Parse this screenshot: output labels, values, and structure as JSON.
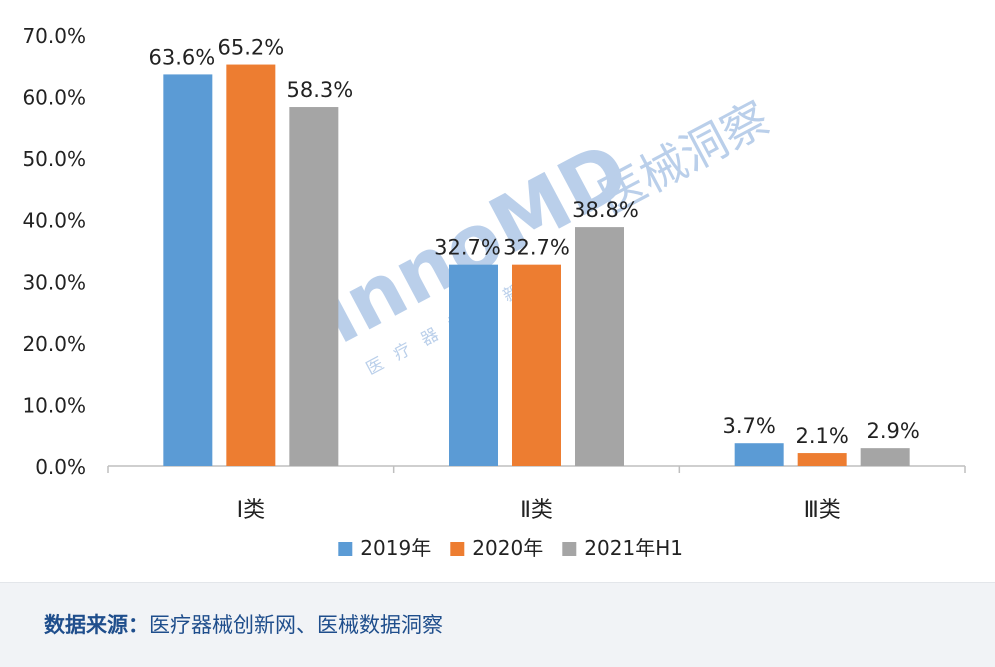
{
  "chart_data": {
    "type": "bar",
    "categories": [
      "Ⅰ类",
      "Ⅱ类",
      "Ⅲ类"
    ],
    "series": [
      {
        "name": "2019年",
        "color": "#5b9bd5",
        "values": [
          63.6,
          32.7,
          3.7
        ],
        "labels": [
          "63.6%",
          "32.7%",
          "3.7%"
        ]
      },
      {
        "name": "2020年",
        "color": "#ed7d31",
        "values": [
          65.2,
          32.7,
          2.1
        ],
        "labels": [
          "65.2%",
          "32.7%",
          "2.1%"
        ]
      },
      {
        "name": "2021年H1",
        "color": "#a5a5a5",
        "values": [
          58.3,
          38.8,
          2.9
        ],
        "labels": [
          "58.3%",
          "38.8%",
          "2.9%"
        ]
      }
    ],
    "yticks": [
      "0.0%",
      "10.0%",
      "20.0%",
      "30.0%",
      "40.0%",
      "50.0%",
      "60.0%",
      "70.0%"
    ],
    "ylim": [
      0,
      70
    ],
    "grid": false,
    "legend_position": "bottom"
  },
  "watermark": {
    "logo": "innoMD",
    "brand": "医械洞察",
    "subtitle": "医疗器械创新网"
  },
  "source": {
    "label": "数据来源：",
    "text": "医疗器械创新网、医械数据洞察"
  }
}
